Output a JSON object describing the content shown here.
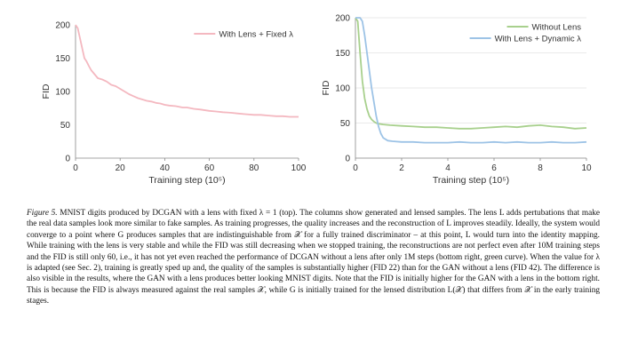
{
  "chart_data": [
    {
      "type": "line",
      "xlabel": "Training step (10⁵)",
      "ylabel": "FID",
      "xlim": [
        0,
        100
      ],
      "ylim": [
        0,
        200
      ],
      "xticks": [
        "0",
        "20",
        "40",
        "60",
        "80",
        "100"
      ],
      "yticks": [
        "0",
        "50",
        "100",
        "150",
        "200"
      ],
      "legend_position": "top-right",
      "grid": false,
      "series": [
        {
          "name": "With Lens + Fixed λ",
          "color": "#f4b8c0",
          "x": [
            0,
            1,
            2,
            3,
            4,
            5,
            6,
            7,
            8,
            9,
            10,
            12,
            14,
            16,
            18,
            20,
            22,
            24,
            26,
            28,
            30,
            32,
            34,
            36,
            38,
            40,
            42,
            45,
            48,
            50,
            53,
            56,
            60,
            63,
            66,
            70,
            73,
            76,
            80,
            83,
            86,
            90,
            93,
            96,
            100
          ],
          "values": [
            200,
            195,
            180,
            165,
            150,
            145,
            138,
            132,
            128,
            124,
            120,
            118,
            115,
            110,
            108,
            104,
            100,
            96,
            93,
            90,
            88,
            86,
            85,
            83,
            82,
            80,
            79,
            78,
            76,
            76,
            74,
            73,
            71,
            70,
            69,
            68,
            67,
            66,
            65,
            65,
            64,
            63,
            63,
            62,
            62
          ]
        }
      ]
    },
    {
      "type": "line",
      "xlabel": "Training step (10⁵)",
      "ylabel": "FID",
      "xlim": [
        0,
        10
      ],
      "ylim": [
        0,
        200
      ],
      "xticks": [
        "0",
        "2",
        "4",
        "6",
        "8",
        "10"
      ],
      "yticks": [
        "0",
        "50",
        "100",
        "150",
        "200"
      ],
      "legend_position": "top-right",
      "grid": true,
      "series": [
        {
          "name": "Without Lens",
          "color": "#a8d08d",
          "x": [
            0,
            0.1,
            0.2,
            0.3,
            0.4,
            0.5,
            0.6,
            0.7,
            0.8,
            0.9,
            1.0,
            1.2,
            1.5,
            2,
            2.5,
            3,
            3.5,
            4,
            4.5,
            5,
            5.5,
            6,
            6.5,
            7,
            7.5,
            8,
            8.5,
            9,
            9.5,
            10
          ],
          "values": [
            200,
            195,
            150,
            110,
            85,
            70,
            60,
            55,
            52,
            50,
            49,
            48,
            47,
            46,
            45,
            44,
            44,
            43,
            42,
            42,
            43,
            44,
            45,
            44,
            46,
            47,
            45,
            44,
            42,
            43
          ]
        },
        {
          "name": "With Lens + Dynamic λ",
          "color": "#9dc3e6",
          "x": [
            0,
            0.2,
            0.3,
            0.4,
            0.5,
            0.6,
            0.7,
            0.8,
            0.9,
            1.0,
            1.1,
            1.2,
            1.4,
            1.6,
            2,
            2.5,
            3,
            3.5,
            4,
            4.5,
            5,
            5.5,
            6,
            6.5,
            7,
            7.5,
            8,
            8.5,
            9,
            9.5,
            10
          ],
          "values": [
            200,
            200,
            195,
            175,
            150,
            125,
            100,
            80,
            60,
            45,
            35,
            29,
            25,
            24,
            23,
            23,
            22,
            22,
            22,
            23,
            22,
            22,
            23,
            22,
            23,
            22,
            22,
            23,
            22,
            22,
            23
          ]
        }
      ]
    }
  ],
  "caption": {
    "label": "Figure 5.",
    "text": " MNIST digits produced by DCGAN with a lens with fixed λ = 1 (top). The columns show generated and lensed samples. The lens L adds pertubations that make the real data samples look more similar to fake samples. As training progresses, the quality increases and the reconstruction of L improves steadily. Ideally, the system would converge to a point where G produces samples that are indistinguishable from 𝒳 for a fully trained discriminator – at this point, L would turn into the identity mapping. While training with the lens is very stable and while the FID was still decreasing when we stopped training, the reconstructions are not perfect even after 10M training steps and the FID is still only 60, i.e., it has not yet even reached the performance of DCGAN without a lens after only 1M steps (bottom right, green curve). When the value for λ is adapted (see Sec. 2), training is greatly sped up and, the quality of the samples is substantially higher (FID 22) than for the GAN without a lens (FID 42). The difference is also visible in the results, where the GAN with a lens produces better looking MNIST digits. Note that the FID is initially higher for the GAN with a lens in the bottom right. This is because the FID is always measured against the real samples 𝒳, while G is initially trained for the lensed distribution L(𝒳) that differs from 𝒳 in the early training stages."
  }
}
